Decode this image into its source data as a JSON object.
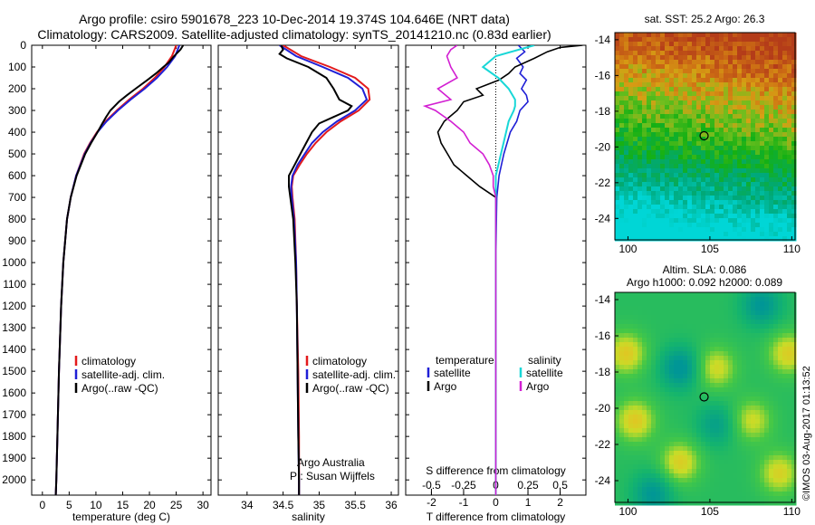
{
  "header": {
    "line1": "Argo profile: csiro 5901678_223 10-Dec-2014 19.374S 104.646E (NRT data)",
    "line2": "Climatology: CARS2009. Satellite-adjusted climatology: synTS_20141210.nc (0.83d earlier)"
  },
  "depth_axis": {
    "ticks": [
      0,
      100,
      200,
      300,
      400,
      500,
      600,
      700,
      800,
      900,
      1000,
      1100,
      1200,
      1300,
      1400,
      1500,
      1600,
      1700,
      1800,
      1900,
      2000
    ],
    "range": [
      0,
      2070
    ]
  },
  "colors": {
    "climatology": "#e31a1c",
    "satellite": "#1f1fd6",
    "argo": "#000000",
    "salinity_sat": "#19d7d7",
    "salinity_argo": "#d21fd2"
  },
  "chart_data": [
    {
      "type": "line",
      "id": "temperature",
      "xlabel": "temperature (deg C)",
      "ylabel": "depth",
      "xlim": [
        -2,
        31.5
      ],
      "xticks": [
        0,
        5,
        10,
        15,
        20,
        25,
        30
      ],
      "legend": [
        "climatology",
        "satellite-adj. clim.",
        "Argo(..raw -QC)"
      ],
      "series": [
        {
          "name": "climatology",
          "depth": [
            0,
            50,
            100,
            150,
            200,
            250,
            300,
            350,
            400,
            450,
            500,
            600,
            700,
            800,
            1000,
            1200,
            1500,
            1800,
            2000,
            2070
          ],
          "values": [
            25.0,
            24.2,
            22.8,
            21.0,
            18.8,
            16.2,
            13.9,
            11.8,
            10.2,
            8.9,
            7.8,
            6.3,
            5.3,
            4.6,
            3.9,
            3.5,
            3.1,
            2.8,
            2.6,
            2.5
          ]
        },
        {
          "name": "satellite-adj. clim.",
          "depth": [
            0,
            50,
            100,
            150,
            200,
            250,
            300,
            350,
            400,
            450,
            500,
            600,
            700,
            800,
            1000,
            1200,
            1500,
            1800,
            2000,
            2070
          ],
          "values": [
            25.6,
            24.8,
            23.3,
            21.4,
            19.1,
            16.5,
            14.1,
            12.0,
            10.3,
            9.0,
            7.9,
            6.3,
            5.3,
            4.6,
            3.9,
            3.5,
            3.1,
            2.8,
            2.6,
            2.5
          ]
        },
        {
          "name": "Argo(..raw -QC)",
          "depth": [
            0,
            20,
            50,
            80,
            100,
            130,
            160,
            200,
            230,
            260,
            300,
            330,
            360,
            400,
            450,
            500,
            600,
            700,
            800,
            1000,
            1200,
            1500,
            1800,
            2000,
            2070
          ],
          "values": [
            26.3,
            25.8,
            24.6,
            23.6,
            22.6,
            21.2,
            19.6,
            17.4,
            15.8,
            14.3,
            12.7,
            11.9,
            11.2,
            10.3,
            9.1,
            8.0,
            6.4,
            5.3,
            4.6,
            3.9,
            3.5,
            3.1,
            2.8,
            2.6,
            2.5
          ]
        }
      ]
    },
    {
      "type": "line",
      "id": "salinity",
      "xlabel": "salinity",
      "ylabel": "depth",
      "xlim": [
        33.6,
        36.1
      ],
      "xticks": [
        34,
        34.5,
        35,
        35.5,
        36
      ],
      "legend": [
        "climatology",
        "satellite-adj. clim.",
        "Argo(..raw -QC)"
      ],
      "credit1": "Argo Australia",
      "credit2": "PI: Susan Wijffels",
      "series": [
        {
          "name": "climatology",
          "depth": [
            0,
            50,
            100,
            150,
            200,
            250,
            300,
            350,
            400,
            450,
            500,
            550,
            600,
            650,
            700,
            800,
            1000,
            1200,
            1500,
            1800,
            2000,
            2070
          ],
          "values": [
            34.5,
            34.75,
            35.15,
            35.5,
            35.68,
            35.7,
            35.55,
            35.3,
            35.1,
            34.95,
            34.83,
            34.73,
            34.64,
            34.62,
            34.63,
            34.66,
            34.68,
            34.69,
            34.71,
            34.72,
            34.72,
            34.72
          ]
        },
        {
          "name": "satellite-adj. clim.",
          "depth": [
            0,
            50,
            100,
            150,
            200,
            250,
            300,
            350,
            400,
            450,
            500,
            550,
            600,
            650,
            700,
            800,
            1000,
            1200,
            1500,
            1800,
            2000,
            2070
          ],
          "values": [
            34.45,
            34.68,
            35.05,
            35.4,
            35.6,
            35.66,
            35.5,
            35.25,
            35.05,
            34.9,
            34.8,
            34.7,
            34.63,
            34.61,
            34.62,
            34.65,
            34.68,
            34.69,
            34.7,
            34.71,
            34.72,
            34.72
          ]
        },
        {
          "name": "Argo(..raw -QC)",
          "depth": [
            0,
            20,
            40,
            60,
            100,
            150,
            200,
            250,
            280,
            300,
            330,
            360,
            400,
            450,
            500,
            550,
            600,
            650,
            700,
            800,
            1000,
            1200,
            1500,
            1800,
            2000,
            2070
          ],
          "values": [
            34.47,
            34.5,
            34.45,
            34.55,
            34.85,
            35.1,
            35.2,
            35.28,
            35.45,
            35.4,
            35.2,
            35.0,
            34.9,
            34.82,
            34.74,
            34.66,
            34.58,
            34.58,
            34.6,
            34.64,
            34.67,
            34.69,
            34.7,
            34.71,
            34.72,
            34.72
          ]
        }
      ]
    },
    {
      "type": "line",
      "id": "difference",
      "xlabel": "T difference from climatology",
      "x2label": "S difference from climatology",
      "ylabel": "depth",
      "xlim": [
        -2.8,
        2.8
      ],
      "xticks": [
        -2,
        -1,
        0,
        1,
        2
      ],
      "x2lim": [
        -0.7,
        0.7
      ],
      "x2ticks": [
        -0.5,
        -0.25,
        0,
        0.25,
        0.5
      ],
      "x2ticklabels": [
        "-0.5",
        "-0.25",
        "0",
        "0.25",
        "0.5"
      ],
      "legend_t_head": "temperature",
      "legend_s_head": "salinity",
      "legend_t": [
        "satellite",
        "Argo"
      ],
      "legend_s": [
        "satellite",
        "Argo"
      ],
      "series_t": [
        {
          "name": "satellite",
          "depth": [
            0,
            30,
            60,
            100,
            130,
            160,
            200,
            230,
            260,
            300,
            350,
            400,
            500,
            600,
            700,
            800,
            1000,
            1500,
            2070
          ],
          "values": [
            0.7,
            0.9,
            0.65,
            0.85,
            0.75,
            0.95,
            0.8,
            0.95,
            1.0,
            0.75,
            0.65,
            0.45,
            0.25,
            0.1,
            0.03,
            0.02,
            0.0,
            0.0,
            0.0
          ]
        },
        {
          "name": "Argo",
          "depth": [
            0,
            10,
            30,
            60,
            100,
            130,
            160,
            200,
            230,
            260,
            300,
            350,
            400,
            450,
            500,
            550,
            600,
            650,
            700,
            800,
            1000,
            1500,
            2070
          ],
          "values": [
            2.7,
            2.0,
            1.6,
            1.2,
            0.6,
            0.4,
            0.1,
            -0.6,
            -0.4,
            -1.0,
            -1.2,
            -1.6,
            -1.8,
            -1.7,
            -1.5,
            -1.3,
            -0.9,
            -0.5,
            0.0,
            0.0,
            0.0,
            0.0,
            0.0
          ]
        }
      ],
      "series_s": [
        {
          "name": "satellite",
          "depth": [
            0,
            50,
            100,
            150,
            200,
            250,
            280,
            300,
            350,
            400,
            500,
            600,
            700,
            800,
            1000,
            1500,
            2070
          ],
          "values": [
            0.3,
            0.0,
            -0.1,
            0.02,
            0.1,
            0.15,
            0.15,
            0.14,
            0.1,
            0.08,
            0.04,
            0.0,
            0.0,
            0.0,
            0.0,
            0.0,
            0.0
          ]
        },
        {
          "name": "Argo",
          "depth": [
            0,
            20,
            50,
            100,
            150,
            200,
            250,
            280,
            300,
            350,
            400,
            450,
            500,
            550,
            600,
            650,
            700,
            800,
            1000,
            1500,
            2070
          ],
          "values": [
            -0.3,
            -0.35,
            -0.38,
            -0.35,
            -0.3,
            -0.45,
            -0.35,
            -0.55,
            -0.47,
            -0.35,
            -0.25,
            -0.2,
            -0.1,
            -0.05,
            -0.02,
            -0.02,
            0.0,
            0.0,
            0.0,
            0.0,
            0.0
          ]
        }
      ]
    },
    {
      "type": "heatmap",
      "id": "sst_map",
      "title": "sat. SST: 25.2  Argo: 26.3",
      "xlim": [
        99.2,
        110.2
      ],
      "ylim": [
        -25.2,
        -13.6
      ],
      "xticks": [
        100,
        105,
        110
      ],
      "yticks": [
        -14,
        -16,
        -18,
        -20,
        -22,
        -24
      ],
      "marker": {
        "lon": 104.646,
        "lat": -19.374
      }
    },
    {
      "type": "heatmap",
      "id": "sla_map",
      "title1": "Altim. SLA: 0.086",
      "title2": "Argo h1000: 0.092 h2000: 0.089",
      "xlim": [
        99.2,
        110.2
      ],
      "ylim": [
        -25.2,
        -13.6
      ],
      "xticks": [
        100,
        105,
        110
      ],
      "yticks": [
        -14,
        -16,
        -18,
        -20,
        -22,
        -24
      ],
      "marker": {
        "lon": 104.646,
        "lat": -19.374
      }
    }
  ],
  "footer": {
    "credit": "©IMOS 03-Aug-2017 01:13:52"
  }
}
